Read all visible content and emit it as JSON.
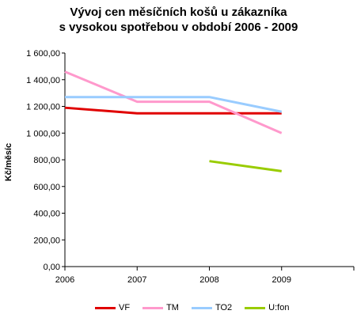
{
  "chart_data": {
    "type": "line",
    "title": [
      "Vývoj cen měsíčních košů u zákazníka",
      "s vysokou spotřebou v období  2006 - 2009"
    ],
    "ylabel": "Kč/měsíc",
    "xlabel": "",
    "x": [
      "2006",
      "2007",
      "2008",
      "2009"
    ],
    "ylim": [
      0,
      1600
    ],
    "yticks": [
      0,
      200,
      400,
      600,
      800,
      1000,
      1200,
      1400,
      1600
    ],
    "ytick_labels": [
      "0,00",
      "200,00",
      "400,00",
      "600,00",
      "800,00",
      "1 000,00",
      "1 200,00",
      "1 400,00",
      "1 600,00"
    ],
    "grid": false,
    "legend_position": "bottom",
    "series": [
      {
        "name": "VF",
        "color": "#e00000",
        "values": [
          1190,
          1148,
          1148,
          1148
        ]
      },
      {
        "name": "TM",
        "color": "#ff99cc",
        "values": [
          1460,
          1235,
          1235,
          1000
        ]
      },
      {
        "name": "TO2",
        "color": "#99ccff",
        "values": [
          1270,
          1270,
          1270,
          1160
        ]
      },
      {
        "name": "U:fon",
        "color": "#99cc00",
        "values": [
          null,
          null,
          790,
          715
        ]
      }
    ]
  }
}
